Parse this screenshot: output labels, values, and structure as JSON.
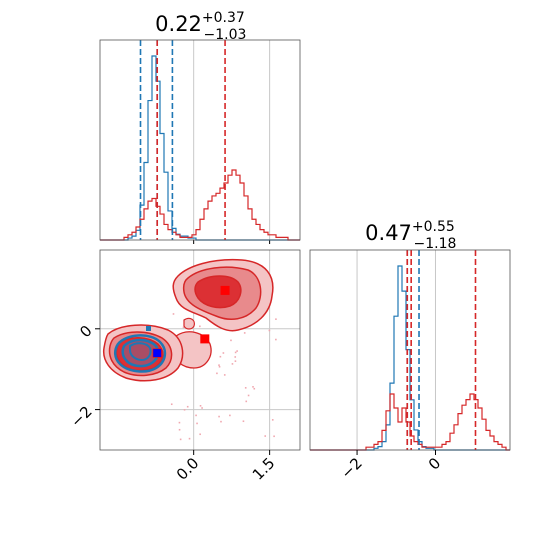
{
  "chart_data": {
    "type": "corner",
    "params": [
      {
        "title_value": "0.22",
        "title_plus": "+0.37",
        "title_minus": "−1.03"
      },
      {
        "title_value": "0.47",
        "title_plus": "+0.55",
        "title_minus": "−1.18"
      }
    ],
    "colors": {
      "red": "#d62728",
      "blue": "#1f77b4",
      "red_fill_1": "#f4c4c5",
      "red_fill_2": "#e88a8c",
      "red_fill_3": "#dc3034",
      "grid": "#c8c8c8"
    },
    "x_range": [
      -1.85,
      2.1
    ],
    "y_range": [
      -3.0,
      1.95
    ],
    "x_ticks": [
      {
        "value": 0.0,
        "label": "0.0"
      },
      {
        "value": 1.5,
        "label": "1.5"
      }
    ],
    "y_ticks": [
      {
        "value": 0,
        "label": "0"
      },
      {
        "value": -2,
        "label": "−2"
      }
    ],
    "hist2_ticks": [
      {
        "value": -2,
        "label": "−2"
      },
      {
        "value": 0,
        "label": "0"
      }
    ],
    "hist1_quantile_lines": {
      "blue": [
        -1.05,
        -0.72,
        -0.42
      ],
      "red": [
        -0.72,
        0.62
      ]
    },
    "hist2_quantile_lines": {
      "blue": [
        -0.72,
        -0.42
      ],
      "red": [
        -0.72,
        -0.62,
        1.02
      ]
    },
    "hist1_red_counts": [
      0,
      0,
      0,
      0,
      0,
      0,
      1,
      2,
      3,
      5,
      8,
      12,
      15,
      16,
      13,
      10,
      6,
      4,
      3,
      2,
      1,
      1,
      1,
      2,
      4,
      8,
      12,
      15,
      17,
      18,
      20,
      22,
      25,
      27,
      25,
      22,
      17,
      12,
      8,
      6,
      4,
      3,
      2,
      2,
      1,
      1,
      1,
      0,
      0,
      0
    ],
    "hist1_blue_counts": [
      0,
      0,
      0,
      0,
      0,
      0,
      0,
      1,
      2,
      5,
      18,
      40,
      72,
      95,
      82,
      55,
      35,
      15,
      6,
      3,
      2,
      2,
      1,
      1,
      0,
      0,
      0,
      0,
      0,
      0,
      0,
      0,
      0,
      0,
      0,
      0,
      0,
      0,
      0,
      0,
      0,
      0,
      0,
      0,
      0,
      0,
      0,
      0,
      0,
      0
    ],
    "hist2_red_counts": [
      0,
      0,
      0,
      0,
      0,
      0,
      0,
      0,
      0,
      0,
      0,
      0,
      0,
      0,
      1,
      1,
      2,
      3,
      7,
      14,
      20,
      15,
      10,
      15,
      10,
      5,
      3,
      2,
      1,
      1,
      1,
      1,
      1,
      2,
      3,
      6,
      9,
      13,
      16,
      18,
      20,
      18,
      15,
      11,
      7,
      5,
      3,
      2,
      1,
      0
    ],
    "hist2_blue_counts": [
      0,
      0,
      0,
      0,
      0,
      0,
      0,
      0,
      0,
      0,
      0,
      0,
      0,
      0,
      0,
      0,
      1,
      2,
      5,
      15,
      40,
      80,
      110,
      95,
      60,
      30,
      12,
      5,
      2,
      1,
      1,
      0,
      0,
      0,
      0,
      0,
      0,
      0,
      0,
      0,
      0,
      0,
      0,
      0,
      0,
      0,
      0,
      0,
      0,
      0
    ],
    "markers": [
      {
        "series": "red",
        "x": 0.62,
        "y": 0.95
      },
      {
        "series": "red",
        "x": 0.22,
        "y": -0.25
      },
      {
        "series": "red",
        "x": -0.72,
        "y": -0.6
      },
      {
        "series": "blue",
        "x": -0.72,
        "y": -0.6
      }
    ],
    "grid": true,
    "legend": "none"
  }
}
